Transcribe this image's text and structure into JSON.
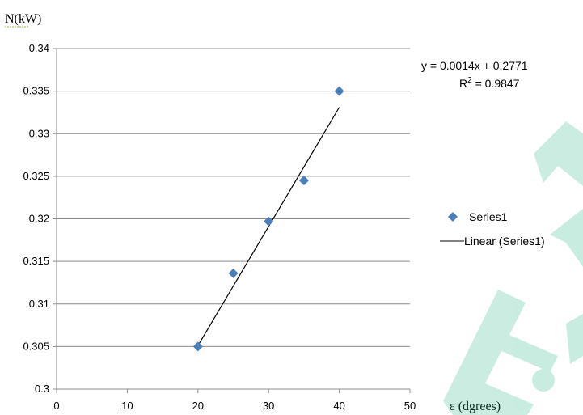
{
  "chart_data": {
    "type": "scatter",
    "ylabel": "N(kW)",
    "xlabel": "ε (dgrees)",
    "xlim": [
      0,
      50
    ],
    "ylim": [
      0.3,
      0.34
    ],
    "x_ticks": [
      "0",
      "10",
      "20",
      "30",
      "40",
      "50"
    ],
    "y_ticks": [
      "0.3",
      "0.305",
      "0.31",
      "0.315",
      "0.32",
      "0.325",
      "0.33",
      "0.335",
      "0.34"
    ],
    "grid": "horizontal",
    "legend_position": "right",
    "series": [
      {
        "name": "Series1",
        "color": "#4a7ebb",
        "marker": "diamond",
        "points": [
          {
            "x": 20,
            "y": 0.305
          },
          {
            "x": 25,
            "y": 0.3136
          },
          {
            "x": 30,
            "y": 0.3197
          },
          {
            "x": 35,
            "y": 0.3245
          },
          {
            "x": 40,
            "y": 0.335
          }
        ]
      }
    ],
    "trendline": {
      "name": "Linear (Series1)",
      "type": "linear",
      "color": "#000000",
      "x_range": [
        20,
        40
      ],
      "slope": 0.0014,
      "intercept": 0.2771
    },
    "annotations": {
      "equation": "y = 0.0014x + 0.2771",
      "r2_prefix": "R",
      "r2_sup": "2",
      "r2_value": " = 0.9847"
    }
  }
}
